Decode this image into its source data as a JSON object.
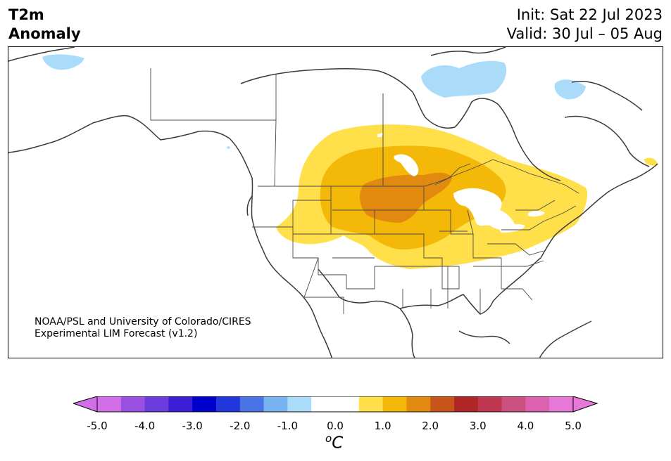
{
  "title": {
    "line1": "T2m",
    "line2": "Anomaly",
    "init": "Init: Sat 22 Jul 2023",
    "valid": "Valid: 30 Jul – 05 Aug"
  },
  "credit": {
    "line1": "NOAA/PSL and University of Colorado/CIRES",
    "line2": "Experimental LIM Forecast (v1.2)"
  },
  "colorbar": {
    "unit_super": "o",
    "unit": "C",
    "ticks": [
      "-5.0",
      "-4.0",
      "-3.0",
      "-2.0",
      "-1.0",
      "0.0",
      "1.0",
      "2.0",
      "3.0",
      "4.0",
      "5.0"
    ],
    "colors": [
      "#d36ee9",
      "#9a50e0",
      "#6a3ddc",
      "#3b1fd6",
      "#0000cc",
      "#2236de",
      "#4a74e6",
      "#78b4f2",
      "#aadcfa",
      "#ffffff",
      "#ffffff",
      "#ffe04a",
      "#f4b808",
      "#e28a10",
      "#c8541a",
      "#b02626",
      "#c03850",
      "#cc5080",
      "#dc62b0",
      "#e878d8"
    ],
    "over_color": "#e878d8",
    "under_color": "#d36ee9"
  },
  "map": {
    "anomaly_colors": {
      "warm_0.5_1.0": "#ffe04a",
      "warm_1.0_1.5": "#f4b808",
      "warm_1.5_2.0": "#e28a10",
      "cool_-1.0_-0.5": "#aadcfa"
    }
  }
}
